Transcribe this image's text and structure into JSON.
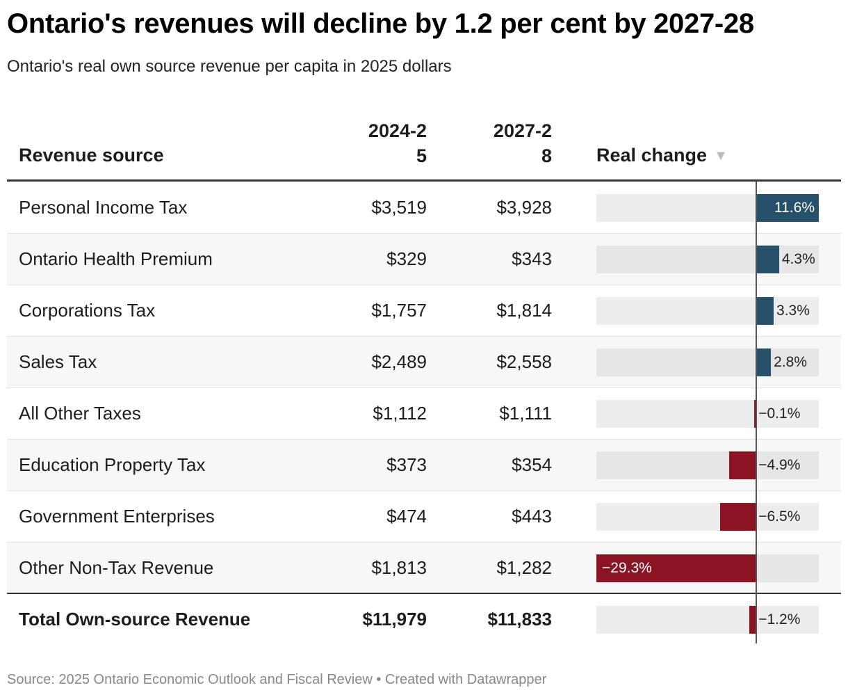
{
  "title": "Ontario's revenues will decline by 1.2 per cent by 2027-28",
  "subtitle": "Ontario's real own source revenue per capita in 2025 dollars",
  "source": "Source: 2025 Ontario Economic Outlook and Fiscal Review • Created with Datawrapper",
  "colors": {
    "positive": "#27506a",
    "negative": "#8b1322",
    "track": "#ededed"
  },
  "chart_data": {
    "type": "table",
    "columns": [
      "Revenue source",
      "2024-25",
      "2027-28",
      "Real change"
    ],
    "sort_indicator": "▼",
    "bar_range": [
      -29.3,
      11.6
    ],
    "rows": [
      {
        "source": "Personal Income Tax",
        "y2024": "$3,519",
        "y2027": "$3,928",
        "change": 11.6,
        "change_label": "11.6%"
      },
      {
        "source": "Ontario Health Premium",
        "y2024": "$329",
        "y2027": "$343",
        "change": 4.3,
        "change_label": "4.3%"
      },
      {
        "source": "Corporations Tax",
        "y2024": "$1,757",
        "y2027": "$1,814",
        "change": 3.3,
        "change_label": "3.3%"
      },
      {
        "source": "Sales Tax",
        "y2024": "$2,489",
        "y2027": "$2,558",
        "change": 2.8,
        "change_label": "2.8%"
      },
      {
        "source": "All Other Taxes",
        "y2024": "$1,112",
        "y2027": "$1,111",
        "change": -0.1,
        "change_label": "−0.1%"
      },
      {
        "source": "Education Property Tax",
        "y2024": "$373",
        "y2027": "$354",
        "change": -4.9,
        "change_label": "−4.9%"
      },
      {
        "source": "Government Enterprises",
        "y2024": "$474",
        "y2027": "$443",
        "change": -6.5,
        "change_label": "−6.5%"
      },
      {
        "source": "Other Non-Tax Revenue",
        "y2024": "$1,813",
        "y2027": "$1,282",
        "change": -29.3,
        "change_label": "−29.3%"
      }
    ],
    "total": {
      "source": "Total Own-source Revenue",
      "y2024": "$11,979",
      "y2027": "$11,833",
      "change": -1.2,
      "change_label": "−1.2%"
    }
  }
}
